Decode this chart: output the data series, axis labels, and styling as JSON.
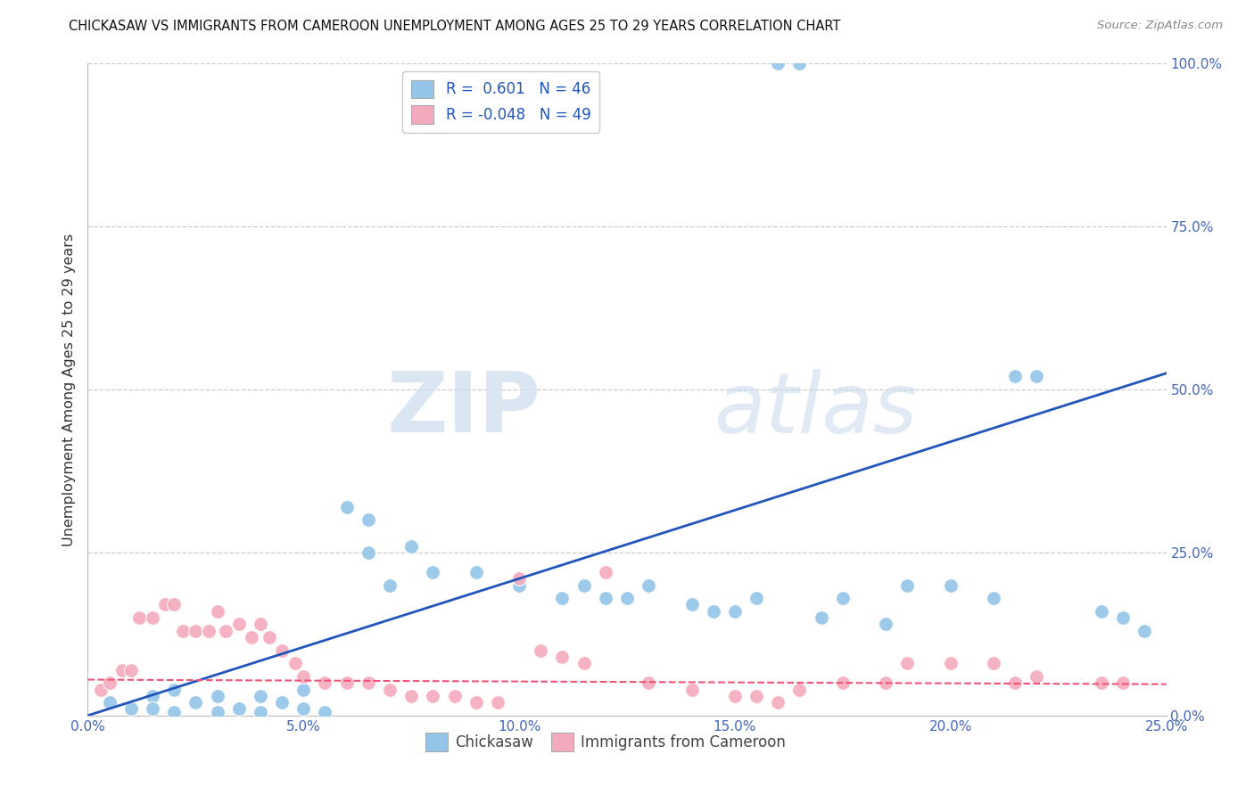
{
  "title": "CHICKASAW VS IMMIGRANTS FROM CAMEROON UNEMPLOYMENT AMONG AGES 25 TO 29 YEARS CORRELATION CHART",
  "source": "Source: ZipAtlas.com",
  "ylabel": "Unemployment Among Ages 25 to 29 years",
  "xlim": [
    0,
    0.25
  ],
  "ylim": [
    0,
    1.0
  ],
  "xticks": [
    0.0,
    0.05,
    0.1,
    0.15,
    0.2,
    0.25
  ],
  "yticks": [
    0.0,
    0.25,
    0.5,
    0.75,
    1.0
  ],
  "xtick_labels": [
    "0.0%",
    "5.0%",
    "10.0%",
    "15.0%",
    "20.0%",
    "25.0%"
  ],
  "ytick_labels": [
    "0.0%",
    "25.0%",
    "50.0%",
    "75.0%",
    "100.0%"
  ],
  "chickasaw_color": "#92C5E8",
  "cameroon_color": "#F4AABD",
  "line_blue": "#2255BB",
  "line_pink": "#EE5577",
  "legend_label_blue": "Chickasaw",
  "legend_label_pink": "Immigrants from Cameroon",
  "R_blue": 0.601,
  "N_blue": 46,
  "R_pink": -0.048,
  "N_pink": 49,
  "watermark_zip": "ZIP",
  "watermark_atlas": "atlas",
  "background_color": "#FFFFFF",
  "grid_color": "#CCCCCC",
  "blue_x": [
    0.005,
    0.01,
    0.015,
    0.015,
    0.02,
    0.02,
    0.025,
    0.03,
    0.03,
    0.035,
    0.04,
    0.04,
    0.045,
    0.05,
    0.05,
    0.055,
    0.06,
    0.065,
    0.065,
    0.07,
    0.075,
    0.08,
    0.09,
    0.1,
    0.11,
    0.115,
    0.12,
    0.125,
    0.13,
    0.14,
    0.145,
    0.15,
    0.155,
    0.16,
    0.165,
    0.17,
    0.175,
    0.185,
    0.19,
    0.2,
    0.21,
    0.215,
    0.22,
    0.235,
    0.24,
    0.245
  ],
  "blue_y": [
    0.02,
    0.01,
    0.03,
    0.01,
    0.04,
    0.005,
    0.02,
    0.03,
    0.005,
    0.01,
    0.03,
    0.005,
    0.02,
    0.04,
    0.01,
    0.005,
    0.32,
    0.3,
    0.25,
    0.2,
    0.26,
    0.22,
    0.22,
    0.2,
    0.18,
    0.2,
    0.18,
    0.18,
    0.2,
    0.17,
    0.16,
    0.16,
    0.18,
    1.0,
    1.0,
    0.15,
    0.18,
    0.14,
    0.2,
    0.2,
    0.18,
    0.52,
    0.52,
    0.16,
    0.15,
    0.13
  ],
  "pink_x": [
    0.003,
    0.005,
    0.008,
    0.01,
    0.012,
    0.015,
    0.018,
    0.02,
    0.022,
    0.025,
    0.028,
    0.03,
    0.032,
    0.035,
    0.038,
    0.04,
    0.042,
    0.045,
    0.048,
    0.05,
    0.055,
    0.06,
    0.065,
    0.07,
    0.075,
    0.08,
    0.085,
    0.09,
    0.095,
    0.1,
    0.105,
    0.11,
    0.115,
    0.12,
    0.13,
    0.14,
    0.15,
    0.155,
    0.16,
    0.165,
    0.175,
    0.185,
    0.19,
    0.2,
    0.21,
    0.215,
    0.22,
    0.235,
    0.24
  ],
  "pink_y": [
    0.04,
    0.05,
    0.07,
    0.07,
    0.15,
    0.15,
    0.17,
    0.17,
    0.13,
    0.13,
    0.13,
    0.16,
    0.13,
    0.14,
    0.12,
    0.14,
    0.12,
    0.1,
    0.08,
    0.06,
    0.05,
    0.05,
    0.05,
    0.04,
    0.03,
    0.03,
    0.03,
    0.02,
    0.02,
    0.21,
    0.1,
    0.09,
    0.08,
    0.22,
    0.05,
    0.04,
    0.03,
    0.03,
    0.02,
    0.04,
    0.05,
    0.05,
    0.08,
    0.08,
    0.08,
    0.05,
    0.06,
    0.05,
    0.05
  ],
  "blue_line_x0": 0.0,
  "blue_line_y0": 0.0,
  "blue_line_x1": 0.25,
  "blue_line_y1": 0.525,
  "pink_line_x0": 0.0,
  "pink_line_y0": 0.055,
  "pink_line_x1": 0.25,
  "pink_line_y1": 0.048
}
